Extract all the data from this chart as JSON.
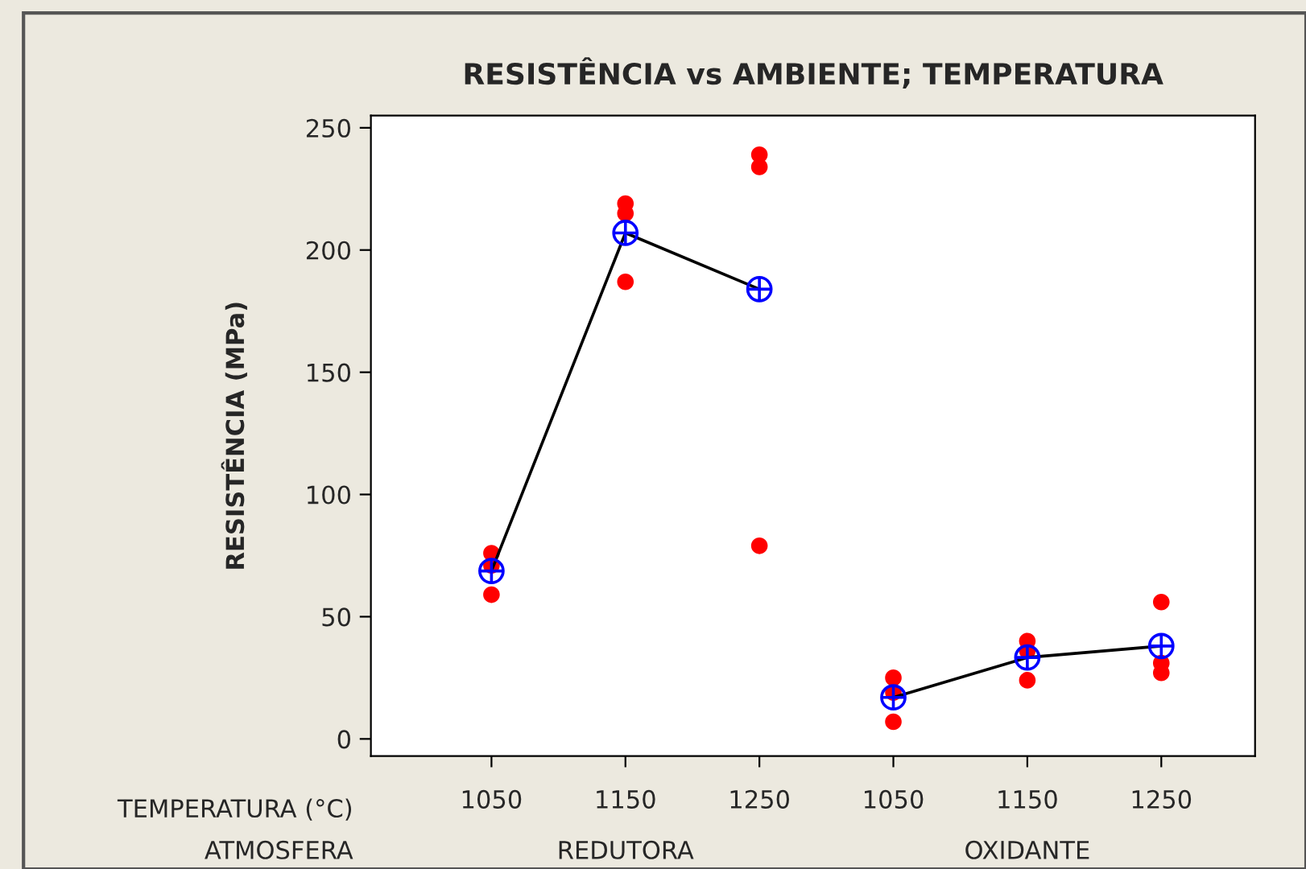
{
  "chart_data": {
    "type": "scatter",
    "title": "RESISTÊNCIA vs AMBIENTE; TEMPERATURA",
    "ylabel": "RESISTÊNCIA (MPa)",
    "categories": [
      "1050",
      "1150",
      "1250",
      "1050",
      "1150",
      "1250"
    ],
    "series": [
      {
        "color": "#ff0000",
        "marker": "circle",
        "values": [
          76,
          219,
          239,
          25,
          40,
          56
        ]
      },
      {
        "color": "#ff0000",
        "marker": "circle",
        "values": [
          71,
          215,
          234,
          19,
          36,
          31
        ]
      },
      {
        "color": "#ff0000",
        "marker": "circle",
        "values": [
          59,
          187,
          79,
          7,
          24,
          27
        ]
      },
      {
        "type": "line",
        "color": "#000000",
        "values": [
          68.7,
          207,
          184,
          null,
          null,
          null
        ]
      },
      {
        "type": "line",
        "color": "#000000",
        "values": [
          null,
          null,
          null,
          17,
          33.3,
          38
        ]
      },
      {
        "color": "#0000ff",
        "marker": "cross",
        "values": [
          68.7,
          207,
          184,
          17,
          33.3,
          38
        ]
      }
    ],
    "annotations": [
      "TEMPERATURA (°C)",
      "ATMOSFERA",
      "REDUTORA",
      "OXIDANTE"
    ],
    "ylim": [
      -7,
      255
    ],
    "yticks": [
      0,
      50,
      100,
      150,
      200,
      250
    ],
    "grid": false,
    "legend": false
  }
}
